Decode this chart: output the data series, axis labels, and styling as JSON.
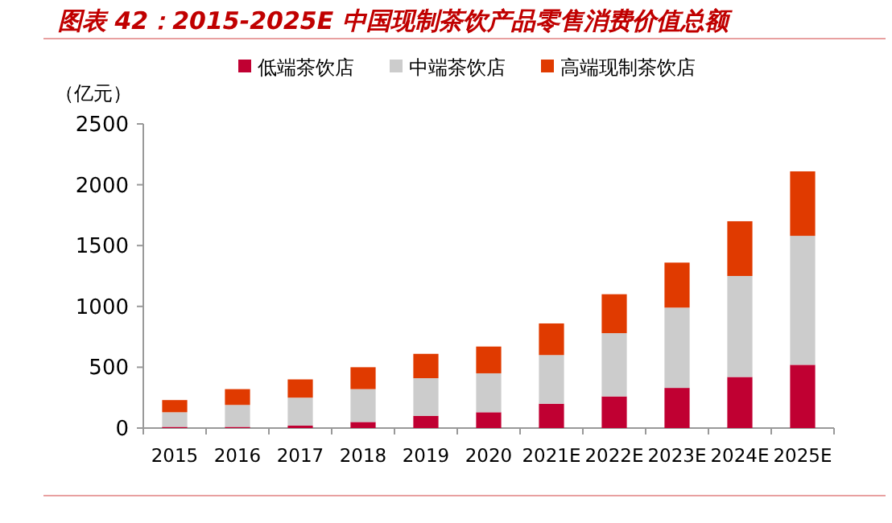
{
  "chart_data": {
    "type": "bar",
    "title": "图表 42：2015-2025E 中国现制茶饮产品零售消费价值总额",
    "ylabel": "（亿元）",
    "categories": [
      "2015",
      "2016",
      "2017",
      "2018",
      "2019",
      "2020",
      "2021E",
      "2022E",
      "2023E",
      "2024E",
      "2025E"
    ],
    "stacked": true,
    "legend": "top",
    "ylim": [
      0,
      2500
    ],
    "yticks": [
      0,
      500,
      1000,
      1500,
      2000,
      2500
    ],
    "series": [
      {
        "name": "低端茶饮店",
        "color": "#c00032",
        "values": [
          10,
          10,
          20,
          50,
          100,
          130,
          200,
          260,
          330,
          420,
          520
        ]
      },
      {
        "name": "中端茶饮店",
        "color": "#cccccc",
        "values": [
          120,
          180,
          230,
          270,
          310,
          320,
          400,
          520,
          660,
          830,
          1060
        ]
      },
      {
        "name": "高端现制茶饮店",
        "color": "#e03a00",
        "values": [
          100,
          130,
          150,
          180,
          200,
          220,
          260,
          320,
          370,
          450,
          530
        ]
      }
    ]
  }
}
